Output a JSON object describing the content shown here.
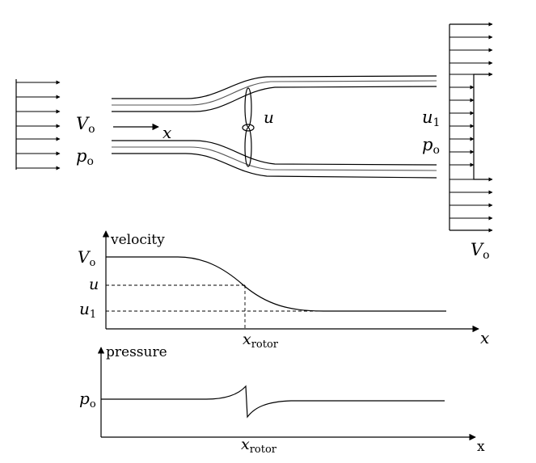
{
  "top_diagram": {
    "labels": {
      "inlet_velocity_main": "V",
      "inlet_velocity_sub": "o",
      "inlet_pressure_main": "p",
      "inlet_pressure_sub": "o",
      "axis_x": "x",
      "rotor_velocity": "u",
      "wake_velocity_main": "u",
      "wake_velocity_sub": "1",
      "wake_pressure_main": "p",
      "wake_pressure_sub": "o",
      "outer_velocity_main": "V",
      "outer_velocity_sub": "o"
    }
  },
  "velocity_plot": {
    "title": "velocity",
    "y_labels": {
      "top_main": "V",
      "top_sub": "o",
      "mid": "u",
      "bottom_main": "u",
      "bottom_sub": "1"
    },
    "x_label": "x",
    "x_marker_main": "x",
    "x_marker_sub": "rotor"
  },
  "pressure_plot": {
    "title": "pressure",
    "y_label_main": "p",
    "y_label_sub": "o",
    "x_label": "x",
    "x_marker_main": "x",
    "x_marker_sub": "rotor"
  }
}
